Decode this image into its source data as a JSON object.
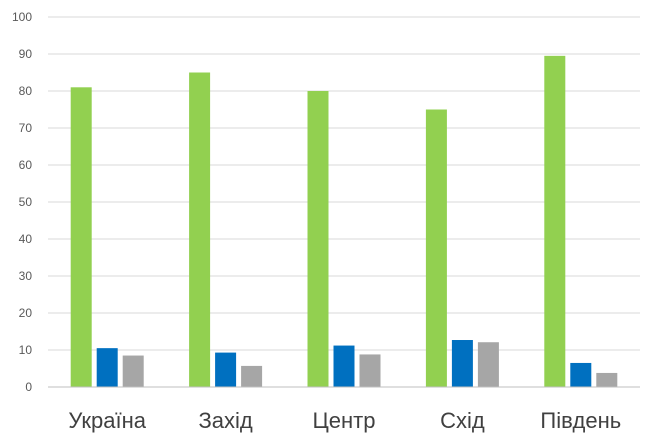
{
  "chart_data": {
    "type": "bar",
    "categories": [
      "Україна",
      "Захід",
      "Центр",
      "Схід",
      "Південь"
    ],
    "series": [
      {
        "color": "#92d050",
        "values": [
          81,
          85,
          80,
          75,
          89.5
        ]
      },
      {
        "color": "#0070c0",
        "values": [
          10.5,
          9.3,
          11.2,
          12.7,
          6.5
        ]
      },
      {
        "color": "#a6a6a6",
        "values": [
          8.5,
          5.7,
          8.8,
          12.1,
          3.8
        ]
      }
    ],
    "yticks": [
      "0",
      "10",
      "20",
      "30",
      "40",
      "50",
      "60",
      "70",
      "80",
      "90",
      "100"
    ],
    "ylim": [
      0,
      100
    ],
    "grid": true,
    "legend": "none"
  }
}
